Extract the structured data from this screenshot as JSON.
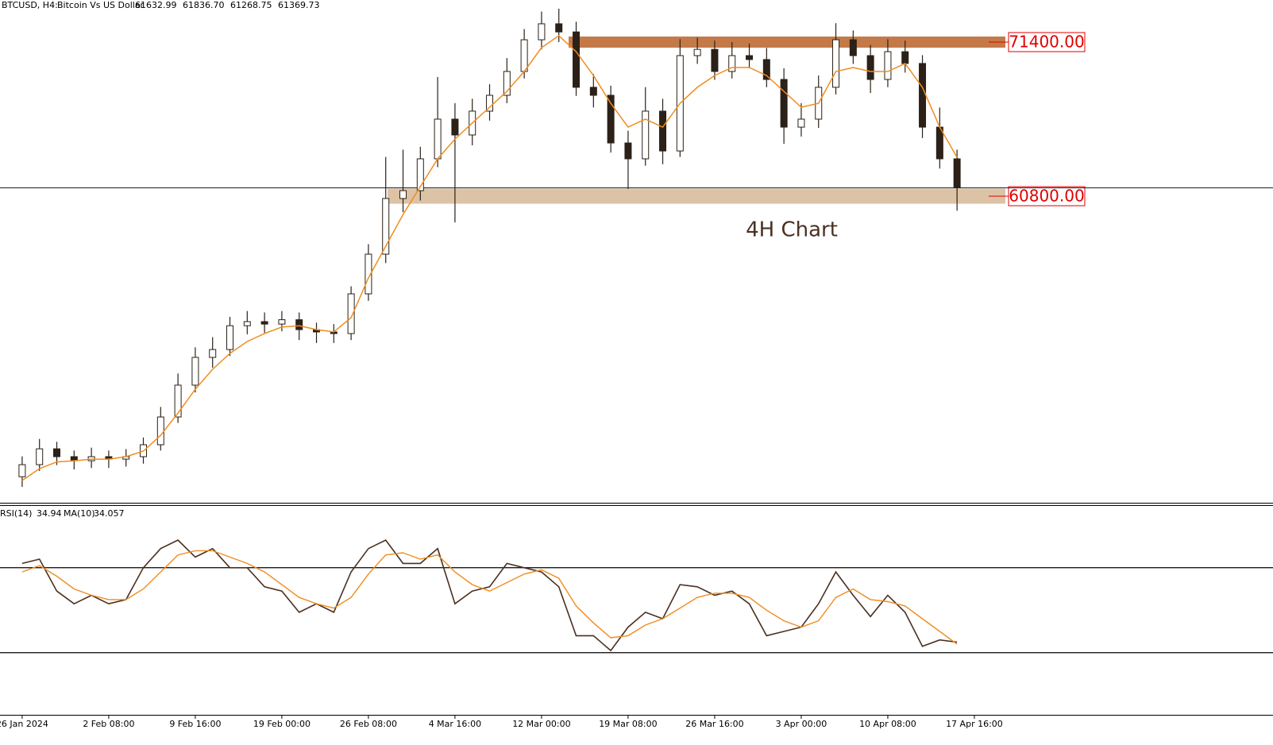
{
  "header": {
    "symbol": "BTCUSD, H4:",
    "name": "Bitcoin Vs US Dollar",
    "open": 61632.99,
    "high": {
      "value": 61836.7,
      "label": "61836.70"
    },
    "low": 61268.75,
    "close": 61369.73
  },
  "chart_data": [
    {
      "type": "candlestick",
      "annotation": "4H Chart",
      "xlim": [
        -1.28,
        72.25
      ],
      "ylim": [
        39764,
        74296
      ],
      "open": [
        41500,
        42330,
        43420,
        42880,
        42600,
        42880,
        42710,
        42880,
        43700,
        45610,
        47800,
        49710,
        50250,
        51890,
        52170,
        52000,
        52300,
        51620,
        51460,
        51350,
        54080,
        56810,
        60640,
        61180,
        63370,
        66100,
        65010,
        66650,
        67740,
        69380,
        71560,
        72660,
        72100,
        68290,
        67740,
        64460,
        63370,
        66650,
        63910,
        70470,
        70900,
        69380,
        70470,
        70200,
        68830,
        65550,
        66100,
        68290,
        71560,
        70470,
        68830,
        70740,
        69930,
        65550,
        63370
      ],
      "high": [
        42900,
        44100,
        43900,
        43300,
        43500,
        43300,
        43400,
        44200,
        46300,
        48600,
        50400,
        51100,
        52500,
        52900,
        52800,
        52900,
        52800,
        52100,
        52000,
        54600,
        57500,
        63500,
        64000,
        64200,
        69000,
        67200,
        67500,
        68500,
        70300,
        72300,
        73500,
        73700,
        72800,
        69200,
        68400,
        65300,
        68300,
        67500,
        71600,
        71700,
        71500,
        71400,
        71300,
        71000,
        69600,
        67200,
        69100,
        72700,
        72200,
        71200,
        71600,
        71500,
        70500,
        66900,
        64000
      ],
      "low": [
        40800,
        41900,
        42300,
        42000,
        42100,
        42100,
        42200,
        42400,
        43300,
        45200,
        47300,
        49000,
        49800,
        51300,
        51400,
        51500,
        50900,
        50700,
        50700,
        50900,
        53600,
        56200,
        59700,
        60500,
        62800,
        59000,
        64300,
        66000,
        67200,
        68900,
        70900,
        71400,
        67700,
        66900,
        63800,
        61300,
        62900,
        63000,
        63500,
        69900,
        68800,
        68900,
        69600,
        68300,
        64400,
        64900,
        65500,
        67800,
        69900,
        67900,
        68300,
        69300,
        64800,
        62700,
        59800
      ],
      "close": [
        42330,
        43420,
        42880,
        42600,
        42880,
        42710,
        42880,
        43700,
        45610,
        47800,
        49710,
        50250,
        51890,
        52170,
        52000,
        52300,
        51620,
        51460,
        51350,
        54080,
        56810,
        60640,
        61180,
        63370,
        66100,
        65010,
        66650,
        67740,
        69380,
        71560,
        72660,
        72100,
        68290,
        67740,
        64460,
        63370,
        66650,
        63910,
        70470,
        70900,
        69380,
        70470,
        70200,
        68830,
        65550,
        66100,
        68290,
        71560,
        70470,
        68830,
        70740,
        69930,
        65550,
        63370,
        61370
      ],
      "up_color": "#ffffff",
      "down_color": "#2b2118",
      "ma": {
        "color": "#f08c1e",
        "values": [
          41240,
          42060,
          42520,
          42600,
          42710,
          42710,
          42880,
          43260,
          44350,
          45880,
          47520,
          48890,
          49980,
          50800,
          51350,
          51800,
          51890,
          51620,
          51460,
          52440,
          55170,
          57360,
          59540,
          61460,
          63370,
          64730,
          65830,
          66920,
          68010,
          69380,
          71020,
          71840,
          70740,
          69100,
          67190,
          65550,
          66100,
          65550,
          67190,
          68290,
          69100,
          69650,
          69650,
          69100,
          68010,
          66920,
          67190,
          69380,
          69650,
          69380,
          69380,
          69930,
          68290,
          65550,
          63480
        ]
      },
      "levels": [
        {
          "value": 71400,
          "label": "71400.00",
          "color": "#c47a48"
        },
        {
          "value": 60800,
          "label": "60800.00",
          "color": "#dcc3a5"
        }
      ]
    },
    {
      "type": "line",
      "indicator_label": "RSI(14)",
      "indicator_value": 34.94,
      "ma_label": "MA(10)",
      "ma_value": 34.057,
      "xlim": [
        -1.28,
        72.25
      ],
      "ylim": [
        0,
        100
      ],
      "levels": [
        70,
        30
      ],
      "xticks": [
        {
          "value": 0,
          "label": "26 Jan 2024"
        },
        {
          "value": 5,
          "label": "2 Feb 08:00"
        },
        {
          "value": 10,
          "label": "9 Feb 16:00"
        },
        {
          "value": 15,
          "label": "19 Feb 00:00"
        },
        {
          "value": 20,
          "label": "26 Feb 08:00"
        },
        {
          "value": 25,
          "label": "4 Mar 16:00"
        },
        {
          "value": 30,
          "label": "12 Mar 00:00"
        },
        {
          "value": 35,
          "label": "19 Mar 08:00"
        },
        {
          "value": 40,
          "label": "26 Mar 16:00"
        },
        {
          "value": 45,
          "label": "3 Apr 00:00"
        },
        {
          "value": 50,
          "label": "10 Apr 08:00"
        },
        {
          "value": 55,
          "label": "17 Apr 16:00"
        }
      ],
      "series": [
        {
          "color": "#4a3020",
          "values": [
            72,
            74,
            59,
            53,
            57,
            53,
            55,
            70,
            79,
            83,
            75,
            79,
            70,
            70,
            61,
            59,
            49,
            53,
            49,
            68,
            79,
            83,
            72,
            72,
            79,
            53,
            59,
            61,
            72,
            70,
            68,
            61,
            38,
            38,
            31,
            42,
            49,
            46,
            62,
            61,
            57,
            59,
            53,
            38,
            40,
            42,
            53,
            68,
            57,
            47,
            57,
            49,
            33,
            36,
            34.94
          ]
        },
        {
          "color": "#f08c1e",
          "values": [
            68,
            71,
            66,
            60,
            57,
            55,
            55,
            60,
            68,
            76,
            78,
            78,
            75,
            72,
            68,
            62,
            56,
            53,
            51,
            56,
            67,
            76,
            77,
            74,
            76,
            68,
            62,
            59,
            63,
            67,
            69,
            65,
            52,
            44,
            37,
            38,
            43,
            46,
            51,
            56,
            58,
            58,
            56,
            50,
            45,
            42,
            45,
            56,
            60,
            55,
            54,
            52,
            46,
            40,
            34.057
          ]
        }
      ]
    }
  ]
}
